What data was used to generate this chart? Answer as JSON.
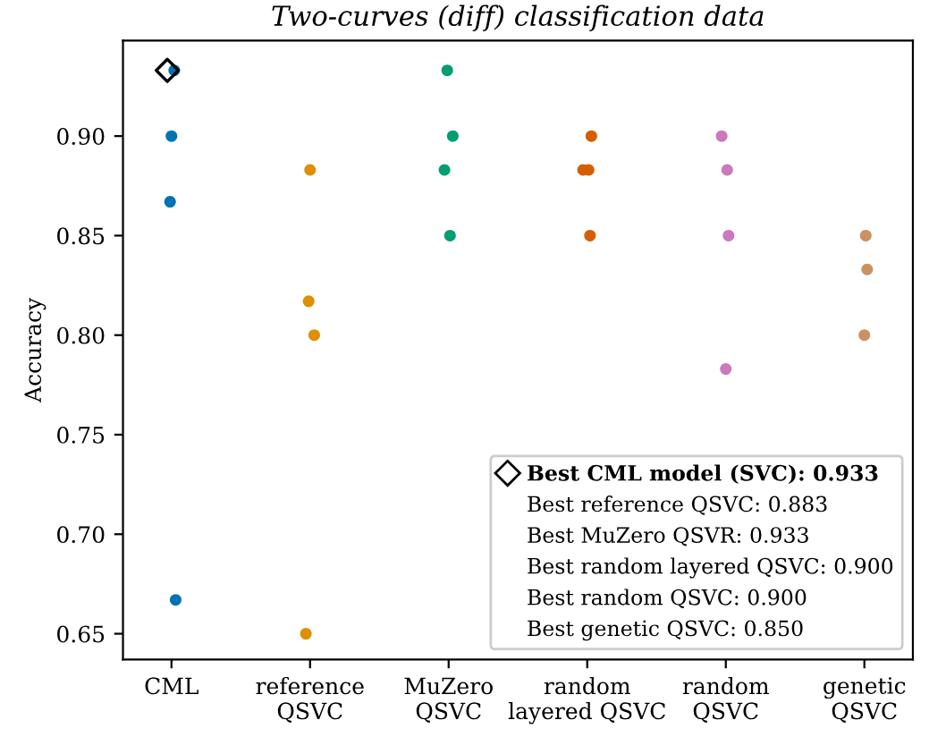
{
  "chart_data": {
    "type": "scatter",
    "title": "Two-curves (diff) classification data",
    "ylabel": "Accuracy",
    "categories": [
      "CML",
      "reference\nQSVC",
      "MuZero\nQSVC",
      "random\nlayered QSVC",
      "random\nQSVC",
      "genetic\nQSVC"
    ],
    "ylim": [
      0.637,
      0.948
    ],
    "yticks": [
      0.65,
      {
        "value": 0.7,
        "label": "0.70"
      },
      0.75,
      {
        "value": 0.8,
        "label": "0.80"
      },
      0.85,
      {
        "value": 0.9,
        "label": "0.90"
      }
    ],
    "grid": false,
    "legend": "bottom right",
    "marker": "circle",
    "series": [
      {
        "color": "#0173b2",
        "x": [
          "CML",
          "CML",
          "CML",
          "CML"
        ],
        "values": [
          0.933,
          0.9,
          0.867,
          0.667
        ]
      },
      {
        "color": "#de8f05",
        "x": [
          "reference\nQSVC",
          "reference\nQSVC",
          "reference\nQSVC",
          "reference\nQSVC"
        ],
        "values": [
          0.883,
          0.817,
          0.8,
          0.65
        ]
      },
      {
        "color": "#029e73",
        "x": [
          "MuZero\nQSVC",
          "MuZero\nQSVC",
          "MuZero\nQSVC",
          "MuZero\nQSVC"
        ],
        "values": [
          0.933,
          0.9,
          0.883,
          0.85
        ]
      },
      {
        "color": "#d55e00",
        "x": [
          "random\nlayered QSVC",
          "random\nlayered QSVC",
          "random\nlayered QSVC",
          "random\nlayered QSVC"
        ],
        "values": [
          0.9,
          0.883,
          0.883,
          0.85
        ]
      },
      {
        "color": "#cc78bc",
        "x": [
          "random\nQSVC",
          "random\nQSVC",
          "random\nQSVC",
          "random\nQSVC"
        ],
        "values": [
          0.9,
          0.883,
          0.85,
          0.783
        ]
      },
      {
        "color": "#ca9161",
        "x": [
          "genetic\nQSVC",
          "genetic\nQSVC",
          "genetic\nQSVC"
        ],
        "values": [
          0.85,
          0.833,
          0.8
        ]
      },
      {
        "name": "Best CML model (SVC): 0.933",
        "color": "#000000",
        "marker": "diamond",
        "x": [
          "CML"
        ],
        "values": [
          0.933
        ]
      }
    ],
    "annotations": [
      "Best reference QSVC: 0.883",
      "Best MuZero QSVR: 0.933",
      "Best random layered QSVC: 0.900",
      "Best random QSVC: 0.900",
      "Best genetic QSVC: 0.850"
    ]
  }
}
